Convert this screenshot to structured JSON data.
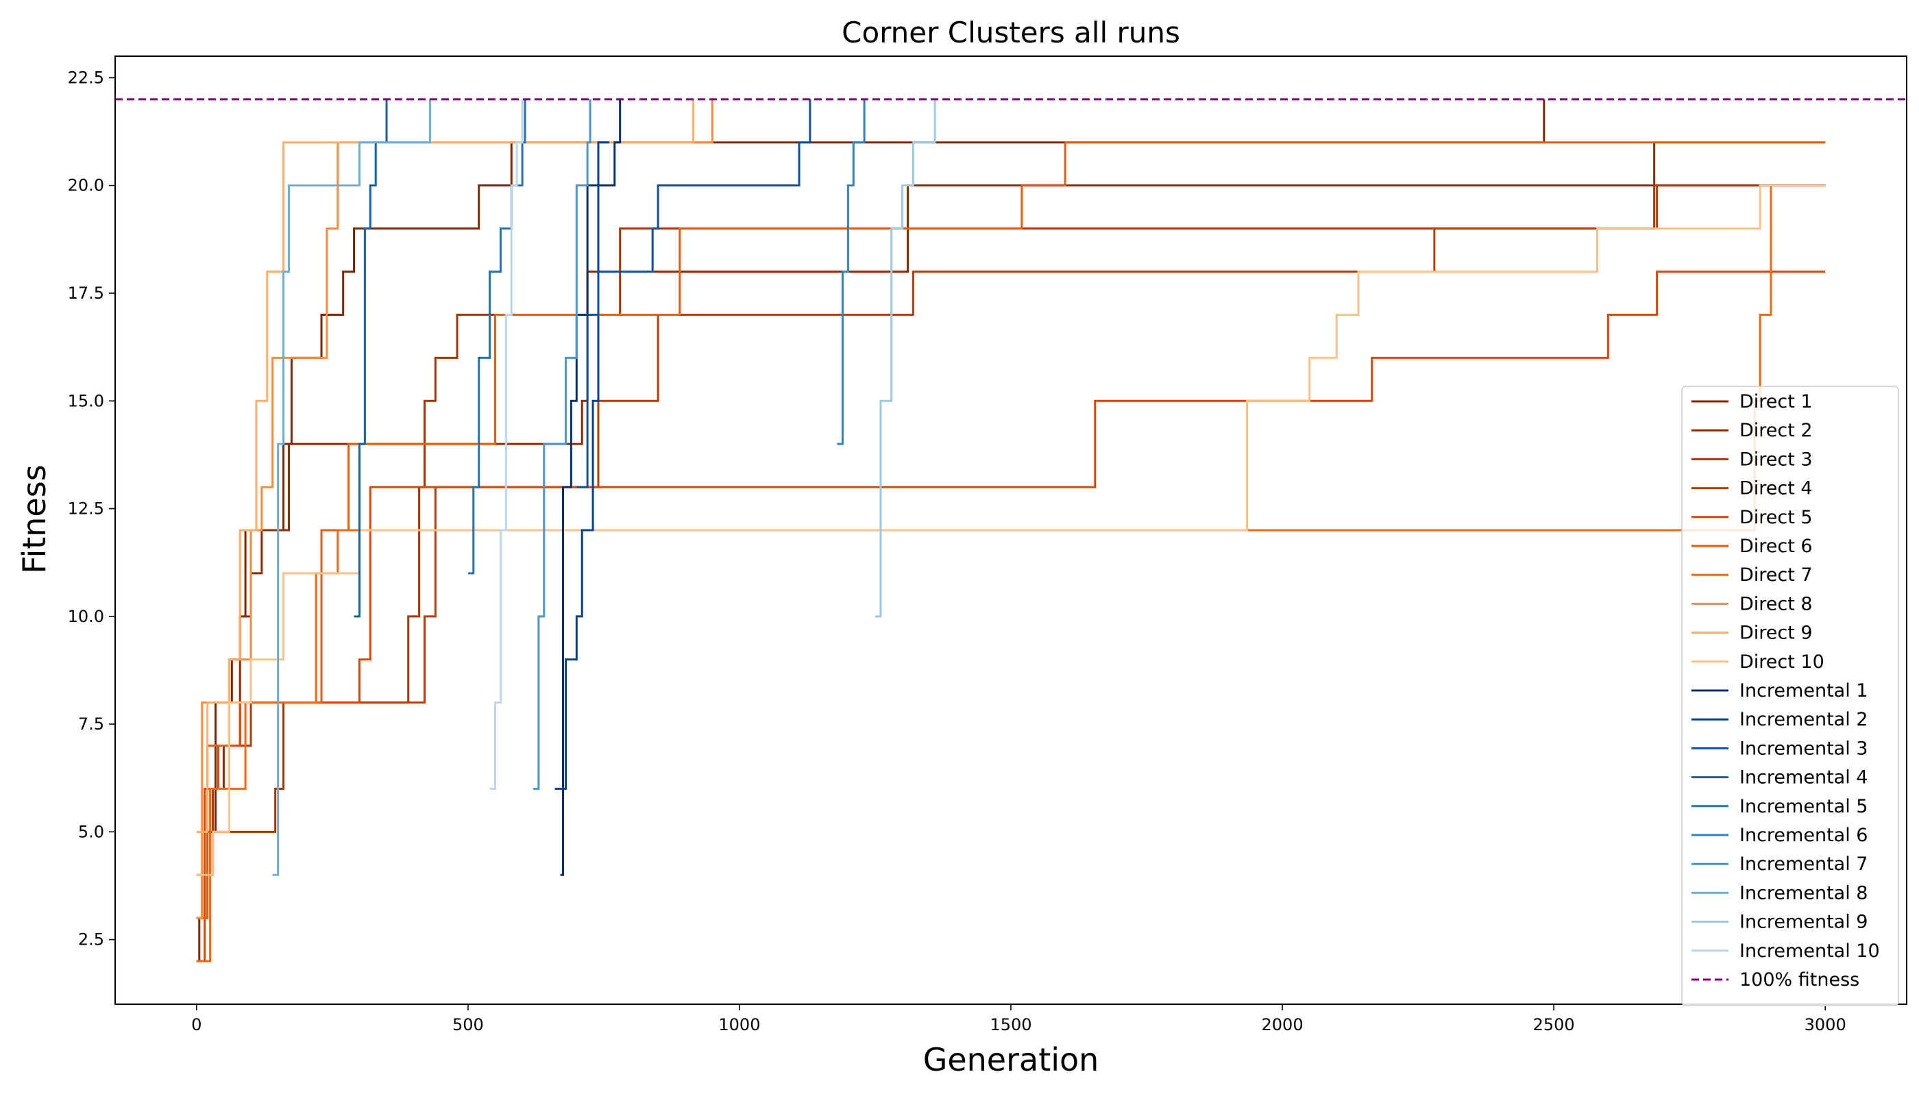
{
  "chart_data": {
    "type": "line",
    "title": "Corner Clusters all runs",
    "xlabel": "Generation",
    "ylabel": "Fitness",
    "xlim": [
      -150,
      3150
    ],
    "ylim": [
      1.0,
      23.0
    ],
    "xticks": [
      0,
      500,
      1000,
      1500,
      2000,
      2500,
      3000
    ],
    "xtick_labels": [
      "0",
      "500",
      "1000",
      "1500",
      "2000",
      "2500",
      "3000"
    ],
    "yticks": [
      2.5,
      5.0,
      7.5,
      10.0,
      12.5,
      15.0,
      17.5,
      20.0,
      22.5
    ],
    "ytick_labels": [
      "2.5",
      "5.0",
      "7.5",
      "10.0",
      "12.5",
      "15.0",
      "17.5",
      "20.0",
      "22.5"
    ],
    "grid": false,
    "legend_position": "lower right",
    "reference_line": {
      "name": "100% fitness",
      "y": 22,
      "color": "#800080",
      "style": "dashed"
    },
    "series": [
      {
        "name": "Direct 1",
        "color": "#7f2704",
        "steps": [
          [
            0,
            2
          ],
          [
            5,
            3
          ],
          [
            15,
            4
          ],
          [
            25,
            5
          ],
          [
            35,
            8
          ],
          [
            50,
            8
          ],
          [
            65,
            9
          ],
          [
            80,
            10
          ],
          [
            90,
            12
          ],
          [
            160,
            14
          ],
          [
            175,
            16
          ],
          [
            230,
            17
          ],
          [
            270,
            18
          ],
          [
            290,
            19
          ],
          [
            490,
            19
          ],
          [
            520,
            20
          ],
          [
            580,
            21
          ],
          [
            2480,
            21
          ],
          [
            2482,
            22
          ]
        ]
      },
      {
        "name": "Direct 2",
        "color": "#8c2d04",
        "steps": [
          [
            0,
            3
          ],
          [
            10,
            4
          ],
          [
            30,
            6
          ],
          [
            50,
            7
          ],
          [
            80,
            10
          ],
          [
            100,
            11
          ],
          [
            120,
            12
          ],
          [
            170,
            14
          ],
          [
            700,
            14
          ],
          [
            710,
            15
          ],
          [
            720,
            18
          ],
          [
            1300,
            18
          ],
          [
            1310,
            20
          ],
          [
            2680,
            20
          ],
          [
            2685,
            21
          ],
          [
            3000,
            21
          ]
        ]
      },
      {
        "name": "Direct 3",
        "color": "#a63603",
        "steps": [
          [
            0,
            3
          ],
          [
            20,
            5
          ],
          [
            140,
            5
          ],
          [
            145,
            6
          ],
          [
            160,
            8
          ],
          [
            380,
            8
          ],
          [
            390,
            10
          ],
          [
            410,
            13
          ],
          [
            420,
            15
          ],
          [
            440,
            16
          ],
          [
            480,
            17
          ],
          [
            760,
            17
          ],
          [
            780,
            19
          ],
          [
            2680,
            19
          ],
          [
            2685,
            20
          ],
          [
            3000,
            20
          ]
        ]
      },
      {
        "name": "Direct 4",
        "color": "#b83c04",
        "steps": [
          [
            0,
            4
          ],
          [
            30,
            6
          ],
          [
            60,
            7
          ],
          [
            100,
            8
          ],
          [
            400,
            8
          ],
          [
            420,
            10
          ],
          [
            440,
            13
          ],
          [
            700,
            13
          ],
          [
            740,
            15
          ],
          [
            850,
            17
          ],
          [
            1300,
            17
          ],
          [
            1320,
            18
          ],
          [
            2270,
            18
          ],
          [
            2280,
            19
          ],
          [
            2680,
            19
          ],
          [
            2690,
            20
          ],
          [
            3000,
            20
          ]
        ]
      },
      {
        "name": "Direct 5",
        "color": "#d94801",
        "steps": [
          [
            0,
            2
          ],
          [
            15,
            6
          ],
          [
            40,
            7
          ],
          [
            80,
            8
          ],
          [
            280,
            8
          ],
          [
            300,
            9
          ],
          [
            320,
            13
          ],
          [
            1650,
            13
          ],
          [
            1655,
            15
          ],
          [
            2150,
            15
          ],
          [
            2165,
            16
          ],
          [
            2590,
            16
          ],
          [
            2600,
            17
          ],
          [
            2680,
            17
          ],
          [
            2690,
            18
          ],
          [
            3000,
            18
          ]
        ]
      },
      {
        "name": "Direct 6",
        "color": "#e35f0e",
        "steps": [
          [
            0,
            3
          ],
          [
            20,
            7
          ],
          [
            60,
            8
          ],
          [
            200,
            8
          ],
          [
            230,
            12
          ],
          [
            260,
            12
          ],
          [
            280,
            14
          ],
          [
            540,
            14
          ],
          [
            550,
            17
          ],
          [
            880,
            17
          ],
          [
            890,
            19
          ],
          [
            1500,
            19
          ],
          [
            1520,
            20
          ],
          [
            1590,
            20
          ],
          [
            1600,
            21
          ],
          [
            3000,
            21
          ]
        ]
      },
      {
        "name": "Direct 7",
        "color": "#f16913",
        "steps": [
          [
            0,
            2
          ],
          [
            25,
            6
          ],
          [
            90,
            8
          ],
          [
            220,
            11
          ],
          [
            260,
            12
          ],
          [
            2860,
            12
          ],
          [
            2870,
            15
          ],
          [
            2880,
            17
          ],
          [
            2900,
            20
          ],
          [
            3000,
            20
          ]
        ]
      },
      {
        "name": "Direct 8",
        "color": "#fd8d3c",
        "steps": [
          [
            0,
            3
          ],
          [
            10,
            8
          ],
          [
            60,
            9
          ],
          [
            100,
            12
          ],
          [
            120,
            13
          ],
          [
            140,
            16
          ],
          [
            230,
            16
          ],
          [
            240,
            19
          ],
          [
            260,
            21
          ],
          [
            940,
            21
          ],
          [
            950,
            22
          ]
        ]
      },
      {
        "name": "Direct 9",
        "color": "#fdae6b",
        "steps": [
          [
            0,
            5
          ],
          [
            20,
            8
          ],
          [
            60,
            9
          ],
          [
            80,
            12
          ],
          [
            110,
            15
          ],
          [
            130,
            18
          ],
          [
            150,
            18
          ],
          [
            160,
            21
          ],
          [
            910,
            21
          ],
          [
            915,
            22
          ]
        ]
      },
      {
        "name": "Direct 10",
        "color": "#fdc086",
        "steps": [
          [
            0,
            4
          ],
          [
            30,
            5
          ],
          [
            60,
            8
          ],
          [
            100,
            9
          ],
          [
            160,
            11
          ],
          [
            240,
            11
          ],
          [
            300,
            12
          ],
          [
            1930,
            12
          ],
          [
            1935,
            15
          ],
          [
            2040,
            15
          ],
          [
            2050,
            16
          ],
          [
            2100,
            17
          ],
          [
            2140,
            18
          ],
          [
            2570,
            18
          ],
          [
            2580,
            19
          ],
          [
            2870,
            19
          ],
          [
            2880,
            20
          ],
          [
            3000,
            20
          ]
        ]
      },
      {
        "name": "Incremental 1",
        "color": "#08306b",
        "steps": [
          [
            670,
            4
          ],
          [
            675,
            13
          ],
          [
            690,
            15
          ],
          [
            700,
            17
          ],
          [
            720,
            20
          ],
          [
            770,
            21
          ],
          [
            780,
            22
          ]
        ]
      },
      {
        "name": "Incremental 2",
        "color": "#08418f",
        "steps": [
          [
            660,
            6
          ],
          [
            680,
            9
          ],
          [
            700,
            10
          ],
          [
            710,
            12
          ],
          [
            730,
            15
          ],
          [
            740,
            21
          ],
          [
            760,
            21
          ]
        ]
      },
      {
        "name": "Incremental 3",
        "color": "#0c52a0",
        "steps": [
          [
            700,
            13
          ],
          [
            720,
            17
          ],
          [
            740,
            18
          ],
          [
            840,
            19
          ],
          [
            850,
            20
          ],
          [
            1100,
            20
          ],
          [
            1110,
            21
          ],
          [
            1130,
            22
          ]
        ]
      },
      {
        "name": "Incremental 4",
        "color": "#1460ab",
        "steps": [
          [
            290,
            10
          ],
          [
            300,
            14
          ],
          [
            310,
            19
          ],
          [
            320,
            20
          ],
          [
            330,
            21
          ],
          [
            340,
            21
          ],
          [
            350,
            22
          ]
        ]
      },
      {
        "name": "Incremental 5",
        "color": "#2171b5",
        "steps": [
          [
            500,
            11
          ],
          [
            510,
            13
          ],
          [
            520,
            16
          ],
          [
            540,
            18
          ],
          [
            560,
            19
          ],
          [
            580,
            20
          ],
          [
            600,
            21
          ],
          [
            605,
            22
          ]
        ]
      },
      {
        "name": "Incremental 6",
        "color": "#3182bd",
        "steps": [
          [
            1180,
            14
          ],
          [
            1190,
            18
          ],
          [
            1200,
            20
          ],
          [
            1210,
            21
          ],
          [
            1220,
            21
          ],
          [
            1230,
            22
          ]
        ]
      },
      {
        "name": "Incremental 7",
        "color": "#4a98c9",
        "steps": [
          [
            620,
            6
          ],
          [
            630,
            10
          ],
          [
            640,
            14
          ],
          [
            680,
            16
          ],
          [
            700,
            20
          ],
          [
            720,
            21
          ],
          [
            725,
            22
          ]
        ]
      },
      {
        "name": "Incremental 8",
        "color": "#6baed6",
        "steps": [
          [
            140,
            4
          ],
          [
            150,
            14
          ],
          [
            160,
            18
          ],
          [
            170,
            20
          ],
          [
            300,
            21
          ],
          [
            420,
            21
          ],
          [
            430,
            22
          ]
        ]
      },
      {
        "name": "Incremental 9",
        "color": "#9ecae1",
        "steps": [
          [
            1250,
            10
          ],
          [
            1260,
            15
          ],
          [
            1280,
            19
          ],
          [
            1300,
            20
          ],
          [
            1320,
            21
          ],
          [
            1350,
            21
          ],
          [
            1360,
            22
          ]
        ]
      },
      {
        "name": "Incremental 10",
        "color": "#bcd7ea",
        "steps": [
          [
            540,
            6
          ],
          [
            550,
            8
          ],
          [
            560,
            12
          ],
          [
            570,
            17
          ],
          [
            580,
            20
          ],
          [
            590,
            21
          ],
          [
            600,
            22
          ]
        ]
      }
    ]
  }
}
